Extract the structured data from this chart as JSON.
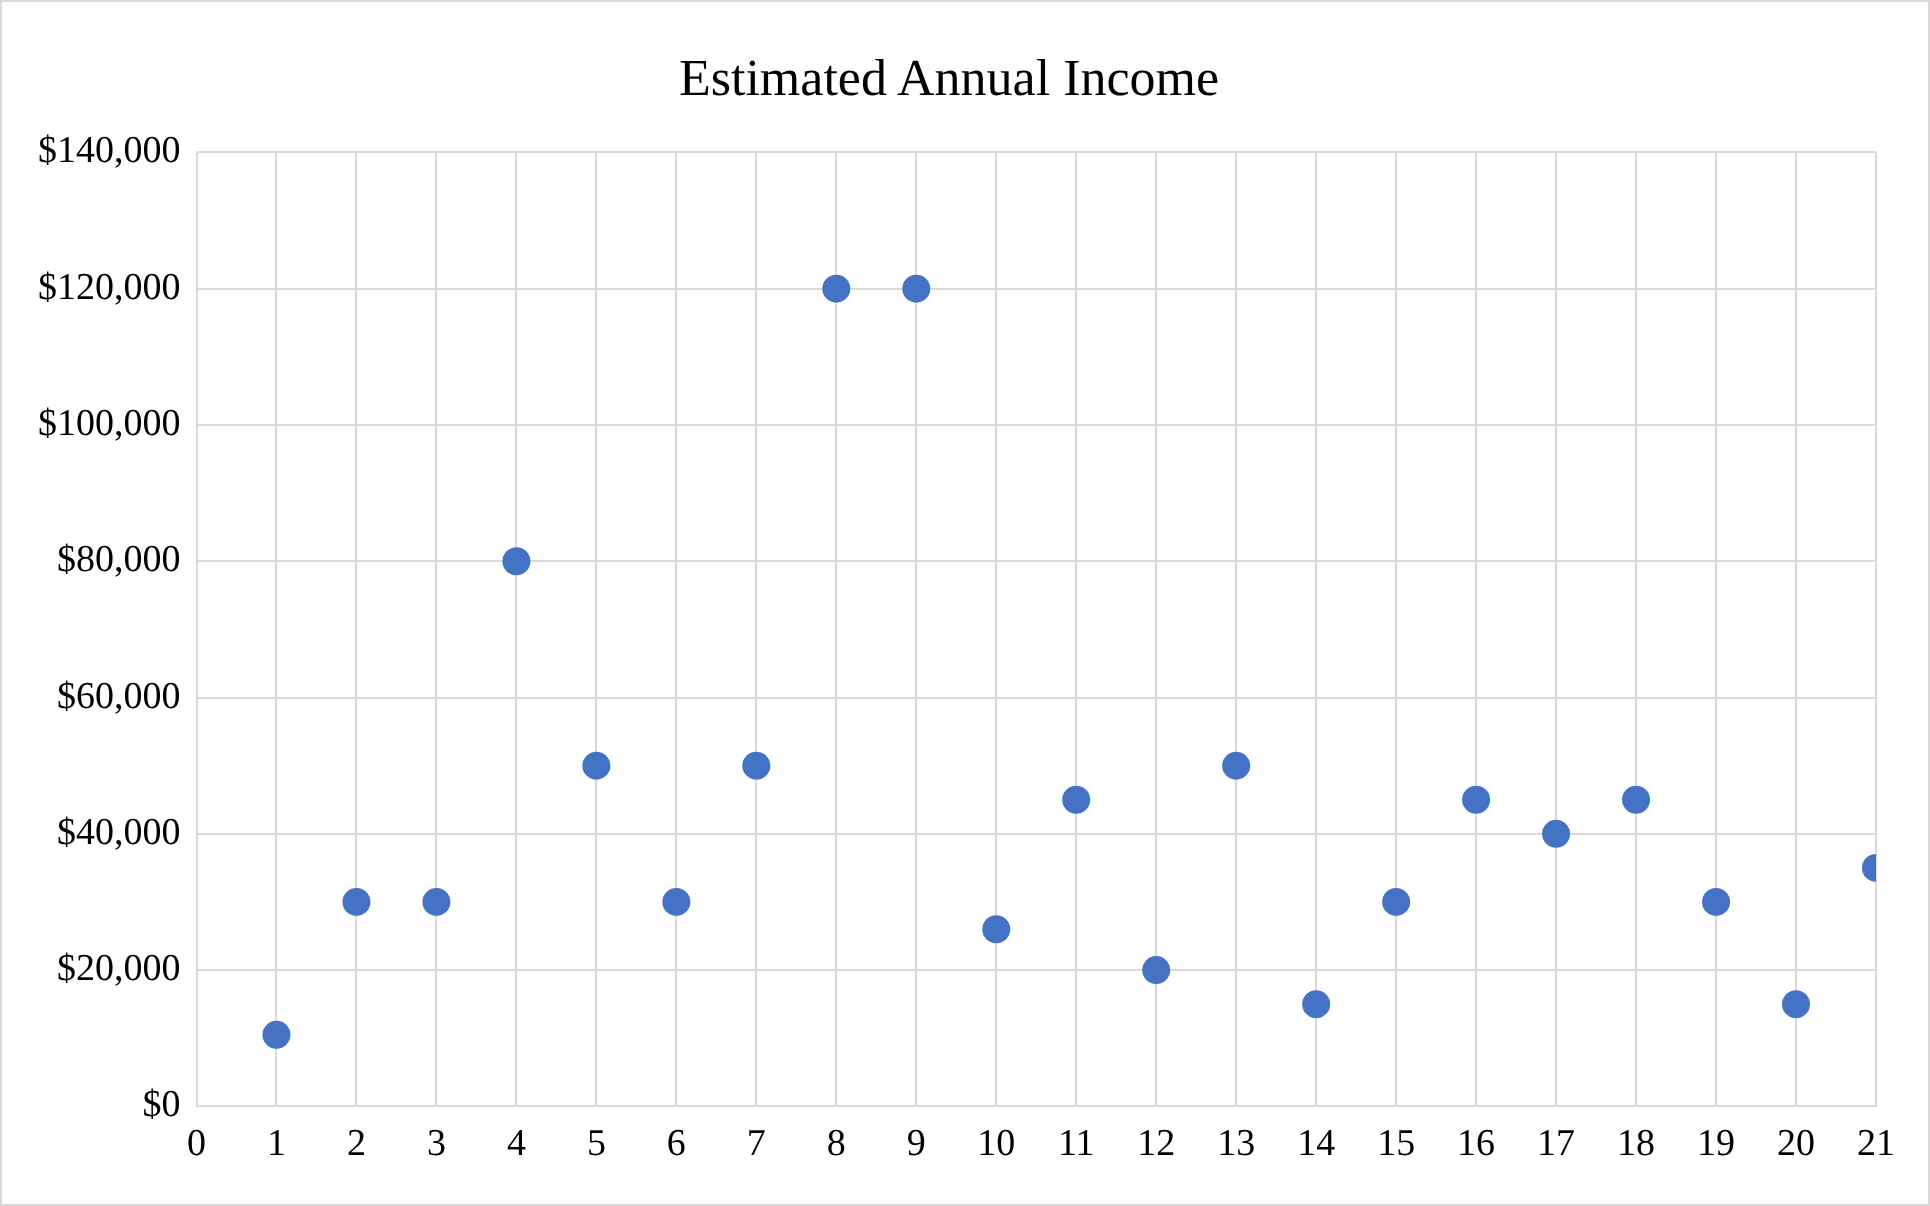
{
  "chart_data": {
    "type": "scatter",
    "title": "Estimated Annual Income",
    "x": [
      1,
      2,
      3,
      4,
      5,
      6,
      7,
      8,
      9,
      10,
      11,
      12,
      13,
      14,
      15,
      16,
      17,
      18,
      19,
      20,
      21
    ],
    "series": [
      {
        "color": "#4472c4",
        "values": [
          10500,
          30000,
          30000,
          80000,
          50000,
          30000,
          50000,
          120000,
          120000,
          26000,
          45000,
          20000,
          50000,
          15000,
          30000,
          45000,
          40000,
          45000,
          30000,
          15000,
          35000
        ]
      }
    ],
    "xlim": [
      0,
      21
    ],
    "xticks": [
      0,
      1,
      2,
      3,
      4,
      5,
      6,
      7,
      8,
      9,
      10,
      11,
      12,
      13,
      14,
      15,
      16,
      17,
      18,
      19,
      20,
      21
    ],
    "ylim": [
      0,
      140000
    ],
    "yticks": [
      {
        "value": 0,
        "label": "$0"
      },
      {
        "value": 20000,
        "label": "$20,000"
      },
      {
        "value": 40000,
        "label": "$40,000"
      },
      {
        "value": 60000,
        "label": "$60,000"
      },
      {
        "value": 80000,
        "label": "$80,000"
      },
      {
        "value": 100000,
        "label": "$100,000"
      },
      {
        "value": 120000,
        "label": "$120,000"
      },
      {
        "value": 140000,
        "label": "$140,000"
      }
    ],
    "grid": true,
    "legend": false,
    "marker": "circle"
  }
}
